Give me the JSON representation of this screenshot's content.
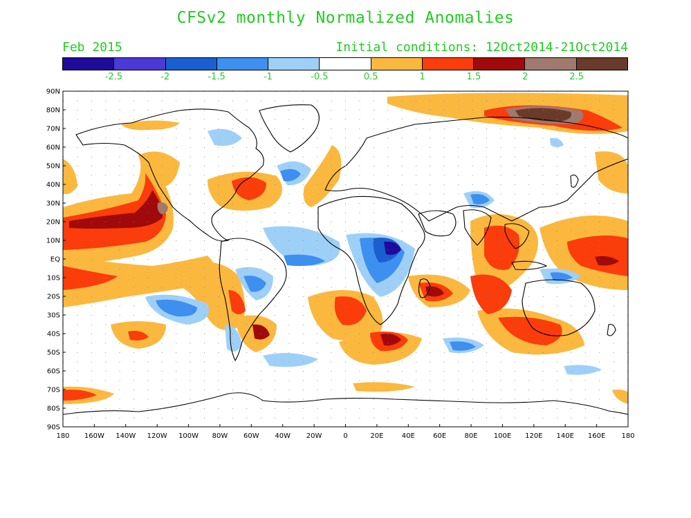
{
  "title": "CFSv2 monthly Normalized Anomalies",
  "month": "Feb 2015",
  "initial_conditions": "Initial conditions: 12Oct2014-21Oct2014",
  "colorbar": {
    "colors": [
      "#1e0a9b",
      "#4a3ad6",
      "#1a5fcf",
      "#3d8ff0",
      "#9ed0f7",
      "#ffffff",
      "#fbb83f",
      "#fb3c0b",
      "#a00a0a",
      "#a0796f",
      "#6a3a2a"
    ],
    "labels": [
      "-2.5",
      "-2",
      "-1.5",
      "-1",
      "-0.5",
      "0.5",
      "1",
      "1.5",
      "2",
      "2.5"
    ]
  },
  "axes": {
    "lat_labels": [
      "90N",
      "80N",
      "70N",
      "60N",
      "50N",
      "40N",
      "30N",
      "20N",
      "10N",
      "EQ",
      "10S",
      "20S",
      "30S",
      "40S",
      "50S",
      "60S",
      "70S",
      "80S",
      "90S"
    ],
    "lon_labels": [
      "180",
      "160W",
      "140W",
      "120W",
      "100W",
      "80W",
      "60W",
      "40W",
      "20W",
      "0",
      "20E",
      "40E",
      "60E",
      "80E",
      "100E",
      "120E",
      "140E",
      "160E",
      "180"
    ]
  }
}
